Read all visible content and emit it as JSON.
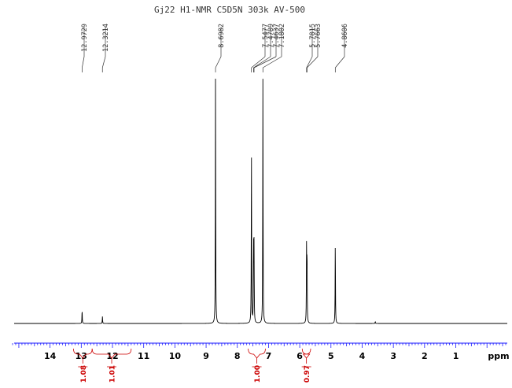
{
  "chart_data": {
    "type": "line",
    "title": "Gj22  H1-NMR C5D5N  303k AV-500",
    "xlabel": "ppm",
    "xlim": [
      15.15,
      -0.65
    ],
    "x_reversed": true,
    "ticks": [
      "14",
      "13",
      "12",
      "11",
      "10",
      "9",
      "8",
      "7",
      "6",
      "5",
      "4",
      "3",
      "2",
      "1"
    ],
    "peak_labels": [
      "12.9729",
      "12.3214",
      "8.6982",
      "7.5477",
      "7.4789",
      "7.4637",
      "7.1802",
      "5.7815",
      "5.7663",
      "4.8606"
    ],
    "peaks": [
      {
        "ppm": 12.9729,
        "height": 0.055
      },
      {
        "ppm": 12.3214,
        "height": 0.028
      },
      {
        "ppm": 8.6982,
        "height": 1.0
      },
      {
        "ppm": 7.5477,
        "height": 0.71
      },
      {
        "ppm": 7.4789,
        "height": 0.32
      },
      {
        "ppm": 7.4637,
        "height": 0.3
      },
      {
        "ppm": 7.1802,
        "height": 0.99
      },
      {
        "ppm": 5.7815,
        "height": 0.3
      },
      {
        "ppm": 5.7663,
        "height": 0.28
      },
      {
        "ppm": 4.8606,
        "height": 0.33
      },
      {
        "ppm": 3.58,
        "height": 0.008
      }
    ],
    "integrals": [
      {
        "label": "1.08",
        "from": 13.25,
        "to": 12.65
      },
      {
        "label": "1.01",
        "from": 12.65,
        "to": 11.4
      },
      {
        "label": "1.00",
        "from": 7.65,
        "to": 7.1
      },
      {
        "label": "0.97",
        "from": 5.92,
        "to": 5.65
      }
    ],
    "colors": {
      "spectrum": "#000000",
      "axis": "#1a1aff",
      "integral": "#cc0000"
    }
  }
}
